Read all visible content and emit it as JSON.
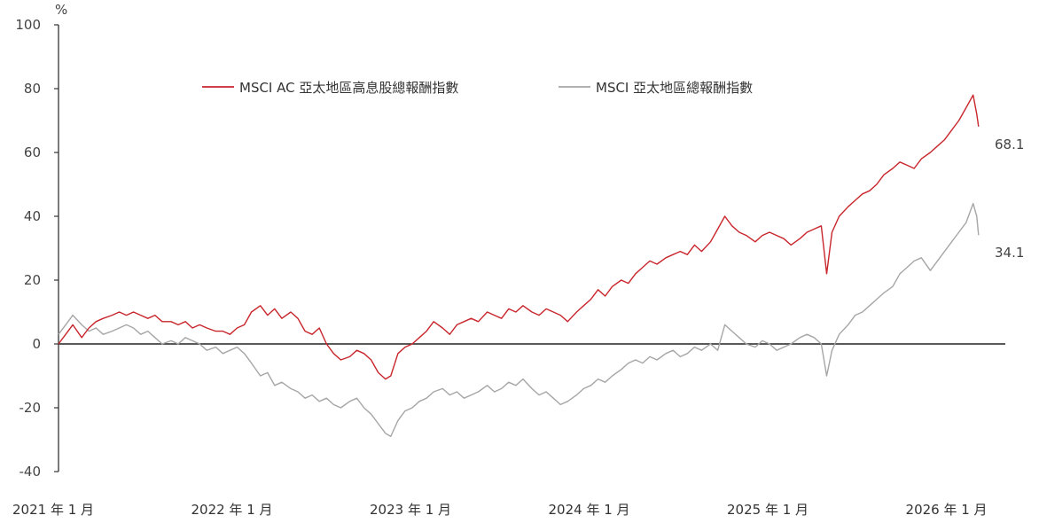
{
  "chart_data": {
    "type": "line",
    "y_unit": "%",
    "ylim": [
      -40,
      100
    ],
    "y_ticks": [
      100,
      80,
      60,
      40,
      20,
      0,
      -20,
      -40
    ],
    "y_tick_labels": [
      "100",
      "80",
      "60",
      "40",
      "20",
      "0",
      "-20",
      "-40"
    ],
    "x_tick_labels": [
      "2021 年 1 月",
      "2022 年 1 月",
      "2023 年 1 月",
      "2024 年 1 月",
      "2025 年 1 月",
      "2026 年 1 月"
    ],
    "x_tick_values": [
      2021.0,
      2022.0,
      2023.0,
      2024.0,
      2025.0,
      2026.0
    ],
    "xlim": [
      2021.0,
      2026.3
    ],
    "grid": false,
    "zero_line": true,
    "legend_position": "top-center",
    "series": [
      {
        "name": "MSCI AC 亞太地區高息股總報酬指數",
        "color": "#c8262c",
        "end_label": "68.1",
        "points": [
          [
            2021.0,
            0
          ],
          [
            2021.04,
            3
          ],
          [
            2021.08,
            6
          ],
          [
            2021.13,
            2
          ],
          [
            2021.17,
            5
          ],
          [
            2021.21,
            7
          ],
          [
            2021.25,
            8
          ],
          [
            2021.3,
            9
          ],
          [
            2021.34,
            10
          ],
          [
            2021.38,
            9
          ],
          [
            2021.42,
            10
          ],
          [
            2021.46,
            9
          ],
          [
            2021.5,
            8
          ],
          [
            2021.54,
            9
          ],
          [
            2021.58,
            7
          ],
          [
            2021.63,
            7
          ],
          [
            2021.67,
            6
          ],
          [
            2021.71,
            7
          ],
          [
            2021.75,
            5
          ],
          [
            2021.79,
            6
          ],
          [
            2021.83,
            5
          ],
          [
            2021.88,
            4
          ],
          [
            2021.92,
            4
          ],
          [
            2021.96,
            3
          ],
          [
            2022.0,
            5
          ],
          [
            2022.04,
            6
          ],
          [
            2022.08,
            10
          ],
          [
            2022.13,
            12
          ],
          [
            2022.17,
            9
          ],
          [
            2022.21,
            11
          ],
          [
            2022.25,
            8
          ],
          [
            2022.3,
            10
          ],
          [
            2022.34,
            8
          ],
          [
            2022.38,
            4
          ],
          [
            2022.42,
            3
          ],
          [
            2022.46,
            5
          ],
          [
            2022.5,
            0
          ],
          [
            2022.54,
            -3
          ],
          [
            2022.58,
            -5
          ],
          [
            2022.63,
            -4
          ],
          [
            2022.67,
            -2
          ],
          [
            2022.71,
            -3
          ],
          [
            2022.75,
            -5
          ],
          [
            2022.79,
            -9
          ],
          [
            2022.83,
            -11
          ],
          [
            2022.86,
            -10
          ],
          [
            2022.9,
            -3
          ],
          [
            2022.94,
            -1
          ],
          [
            2022.98,
            0
          ],
          [
            2023.02,
            2
          ],
          [
            2023.06,
            4
          ],
          [
            2023.1,
            7
          ],
          [
            2023.15,
            5
          ],
          [
            2023.19,
            3
          ],
          [
            2023.23,
            6
          ],
          [
            2023.27,
            7
          ],
          [
            2023.31,
            8
          ],
          [
            2023.35,
            7
          ],
          [
            2023.4,
            10
          ],
          [
            2023.44,
            9
          ],
          [
            2023.48,
            8
          ],
          [
            2023.52,
            11
          ],
          [
            2023.56,
            10
          ],
          [
            2023.6,
            12
          ],
          [
            2023.65,
            10
          ],
          [
            2023.69,
            9
          ],
          [
            2023.73,
            11
          ],
          [
            2023.77,
            10
          ],
          [
            2023.81,
            9
          ],
          [
            2023.85,
            7
          ],
          [
            2023.9,
            10
          ],
          [
            2023.94,
            12
          ],
          [
            2023.98,
            14
          ],
          [
            2024.02,
            17
          ],
          [
            2024.06,
            15
          ],
          [
            2024.1,
            18
          ],
          [
            2024.15,
            20
          ],
          [
            2024.19,
            19
          ],
          [
            2024.23,
            22
          ],
          [
            2024.27,
            24
          ],
          [
            2024.31,
            26
          ],
          [
            2024.35,
            25
          ],
          [
            2024.4,
            27
          ],
          [
            2024.44,
            28
          ],
          [
            2024.48,
            29
          ],
          [
            2024.52,
            28
          ],
          [
            2024.56,
            31
          ],
          [
            2024.6,
            29
          ],
          [
            2024.65,
            32
          ],
          [
            2024.69,
            36
          ],
          [
            2024.73,
            40
          ],
          [
            2024.77,
            37
          ],
          [
            2024.81,
            35
          ],
          [
            2024.85,
            34
          ],
          [
            2024.9,
            32
          ],
          [
            2024.94,
            34
          ],
          [
            2024.98,
            35
          ],
          [
            2025.02,
            34
          ],
          [
            2025.06,
            33
          ],
          [
            2025.1,
            31
          ],
          [
            2025.15,
            33
          ],
          [
            2025.19,
            35
          ],
          [
            2025.23,
            36
          ],
          [
            2025.27,
            37
          ],
          [
            2025.3,
            22
          ],
          [
            2025.33,
            35
          ],
          [
            2025.37,
            40
          ],
          [
            2025.42,
            43
          ],
          [
            2025.46,
            45
          ],
          [
            2025.5,
            47
          ],
          [
            2025.54,
            48
          ],
          [
            2025.58,
            50
          ],
          [
            2025.62,
            53
          ],
          [
            2025.67,
            55
          ],
          [
            2025.71,
            57
          ],
          [
            2025.75,
            56
          ],
          [
            2025.79,
            55
          ],
          [
            2025.83,
            58
          ],
          [
            2025.88,
            60
          ],
          [
            2025.92,
            62
          ],
          [
            2025.96,
            64
          ],
          [
            2026.0,
            67
          ],
          [
            2026.04,
            70
          ],
          [
            2026.08,
            74
          ],
          [
            2026.12,
            78
          ],
          [
            2026.14,
            72
          ],
          [
            2026.15,
            68.1
          ]
        ]
      },
      {
        "name": "MSCI 亞太地區總報酬指數",
        "color": "#a6a6a6",
        "end_label": "34.1",
        "points": [
          [
            2021.0,
            3
          ],
          [
            2021.04,
            6
          ],
          [
            2021.08,
            9
          ],
          [
            2021.13,
            6
          ],
          [
            2021.17,
            4
          ],
          [
            2021.21,
            5
          ],
          [
            2021.25,
            3
          ],
          [
            2021.3,
            4
          ],
          [
            2021.34,
            5
          ],
          [
            2021.38,
            6
          ],
          [
            2021.42,
            5
          ],
          [
            2021.46,
            3
          ],
          [
            2021.5,
            4
          ],
          [
            2021.54,
            2
          ],
          [
            2021.58,
            0
          ],
          [
            2021.63,
            1
          ],
          [
            2021.67,
            0
          ],
          [
            2021.71,
            2
          ],
          [
            2021.75,
            1
          ],
          [
            2021.79,
            0
          ],
          [
            2021.83,
            -2
          ],
          [
            2021.88,
            -1
          ],
          [
            2021.92,
            -3
          ],
          [
            2021.96,
            -2
          ],
          [
            2022.0,
            -1
          ],
          [
            2022.04,
            -3
          ],
          [
            2022.08,
            -6
          ],
          [
            2022.13,
            -10
          ],
          [
            2022.17,
            -9
          ],
          [
            2022.21,
            -13
          ],
          [
            2022.25,
            -12
          ],
          [
            2022.3,
            -14
          ],
          [
            2022.34,
            -15
          ],
          [
            2022.38,
            -17
          ],
          [
            2022.42,
            -16
          ],
          [
            2022.46,
            -18
          ],
          [
            2022.5,
            -17
          ],
          [
            2022.54,
            -19
          ],
          [
            2022.58,
            -20
          ],
          [
            2022.63,
            -18
          ],
          [
            2022.67,
            -17
          ],
          [
            2022.71,
            -20
          ],
          [
            2022.75,
            -22
          ],
          [
            2022.79,
            -25
          ],
          [
            2022.83,
            -28
          ],
          [
            2022.86,
            -29
          ],
          [
            2022.9,
            -24
          ],
          [
            2022.94,
            -21
          ],
          [
            2022.98,
            -20
          ],
          [
            2023.02,
            -18
          ],
          [
            2023.06,
            -17
          ],
          [
            2023.1,
            -15
          ],
          [
            2023.15,
            -14
          ],
          [
            2023.19,
            -16
          ],
          [
            2023.23,
            -15
          ],
          [
            2023.27,
            -17
          ],
          [
            2023.31,
            -16
          ],
          [
            2023.35,
            -15
          ],
          [
            2023.4,
            -13
          ],
          [
            2023.44,
            -15
          ],
          [
            2023.48,
            -14
          ],
          [
            2023.52,
            -12
          ],
          [
            2023.56,
            -13
          ],
          [
            2023.6,
            -11
          ],
          [
            2023.65,
            -14
          ],
          [
            2023.69,
            -16
          ],
          [
            2023.73,
            -15
          ],
          [
            2023.77,
            -17
          ],
          [
            2023.81,
            -19
          ],
          [
            2023.85,
            -18
          ],
          [
            2023.9,
            -16
          ],
          [
            2023.94,
            -14
          ],
          [
            2023.98,
            -13
          ],
          [
            2024.02,
            -11
          ],
          [
            2024.06,
            -12
          ],
          [
            2024.1,
            -10
          ],
          [
            2024.15,
            -8
          ],
          [
            2024.19,
            -6
          ],
          [
            2024.23,
            -5
          ],
          [
            2024.27,
            -6
          ],
          [
            2024.31,
            -4
          ],
          [
            2024.35,
            -5
          ],
          [
            2024.4,
            -3
          ],
          [
            2024.44,
            -2
          ],
          [
            2024.48,
            -4
          ],
          [
            2024.52,
            -3
          ],
          [
            2024.56,
            -1
          ],
          [
            2024.6,
            -2
          ],
          [
            2024.65,
            0
          ],
          [
            2024.69,
            -2
          ],
          [
            2024.73,
            6
          ],
          [
            2024.77,
            4
          ],
          [
            2024.81,
            2
          ],
          [
            2024.85,
            0
          ],
          [
            2024.9,
            -1
          ],
          [
            2024.94,
            1
          ],
          [
            2024.98,
            0
          ],
          [
            2025.02,
            -2
          ],
          [
            2025.06,
            -1
          ],
          [
            2025.1,
            0
          ],
          [
            2025.15,
            2
          ],
          [
            2025.19,
            3
          ],
          [
            2025.23,
            2
          ],
          [
            2025.27,
            0
          ],
          [
            2025.3,
            -10
          ],
          [
            2025.33,
            -2
          ],
          [
            2025.37,
            3
          ],
          [
            2025.42,
            6
          ],
          [
            2025.46,
            9
          ],
          [
            2025.5,
            10
          ],
          [
            2025.54,
            12
          ],
          [
            2025.58,
            14
          ],
          [
            2025.62,
            16
          ],
          [
            2025.67,
            18
          ],
          [
            2025.71,
            22
          ],
          [
            2025.75,
            24
          ],
          [
            2025.79,
            26
          ],
          [
            2025.83,
            27
          ],
          [
            2025.88,
            23
          ],
          [
            2025.92,
            26
          ],
          [
            2025.96,
            29
          ],
          [
            2026.0,
            32
          ],
          [
            2026.04,
            35
          ],
          [
            2026.08,
            38
          ],
          [
            2026.12,
            44
          ],
          [
            2026.14,
            40
          ],
          [
            2026.15,
            34.1
          ]
        ]
      }
    ]
  }
}
